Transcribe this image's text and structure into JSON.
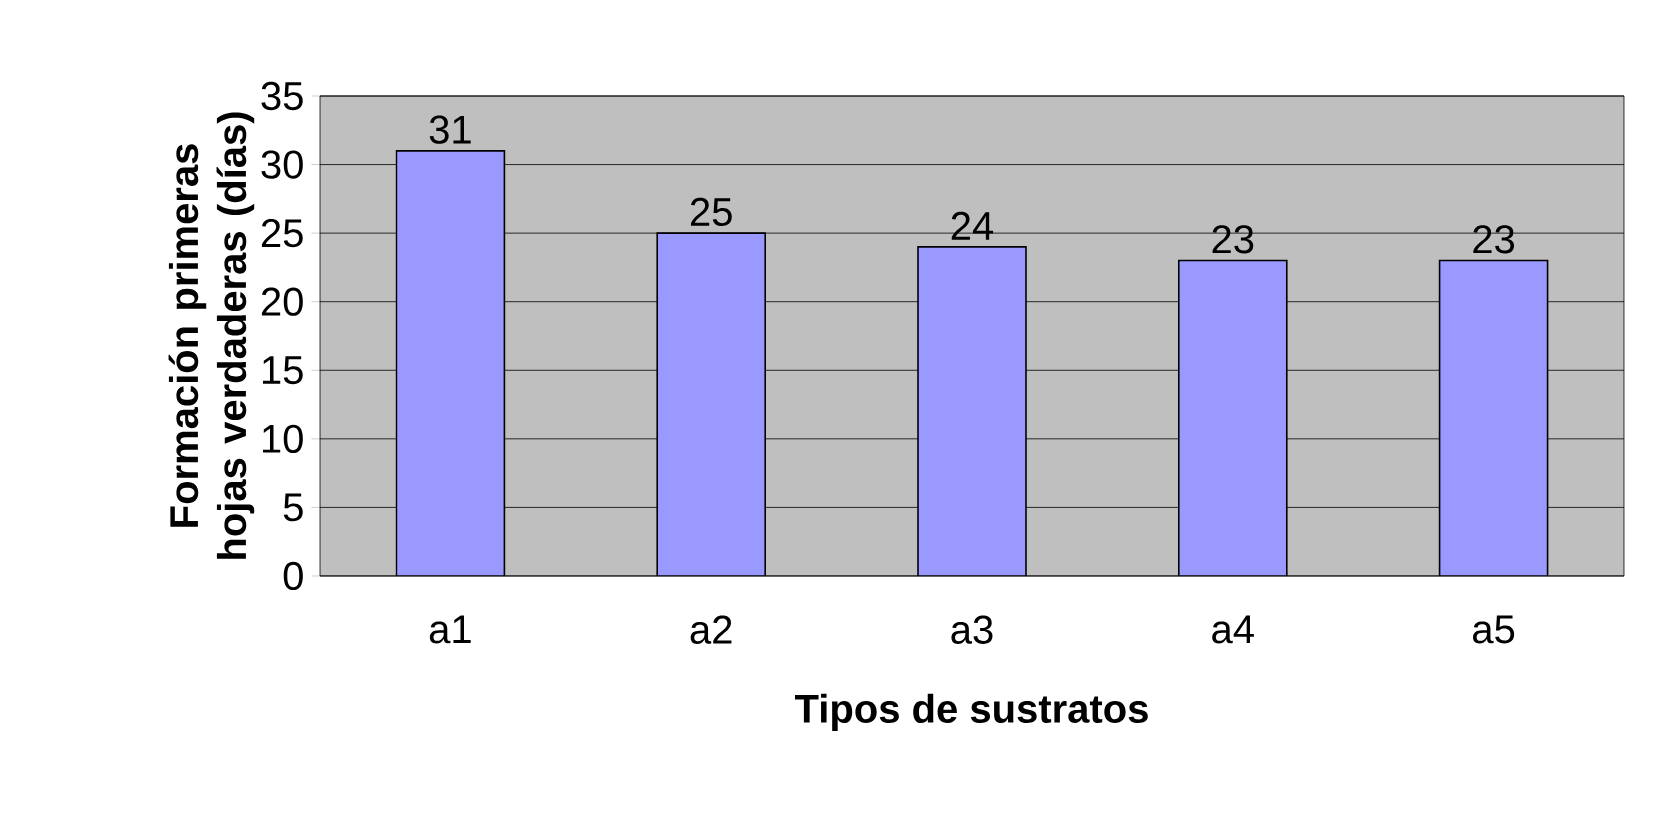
{
  "chart_data": {
    "type": "bar",
    "xlabel": "Tipos de sustratos",
    "ylabel": "Formación primeras hojas verdaderas (días)",
    "categories": [
      "a1",
      "a2",
      "a3",
      "a4",
      "a5"
    ],
    "values": [
      31,
      25,
      24,
      23,
      23
    ],
    "color": "#9999ff",
    "ylim": [
      0,
      35
    ],
    "yticks": [
      0,
      5,
      10,
      15,
      20,
      25,
      30,
      35
    ],
    "grid": "y",
    "data_labels": true
  }
}
